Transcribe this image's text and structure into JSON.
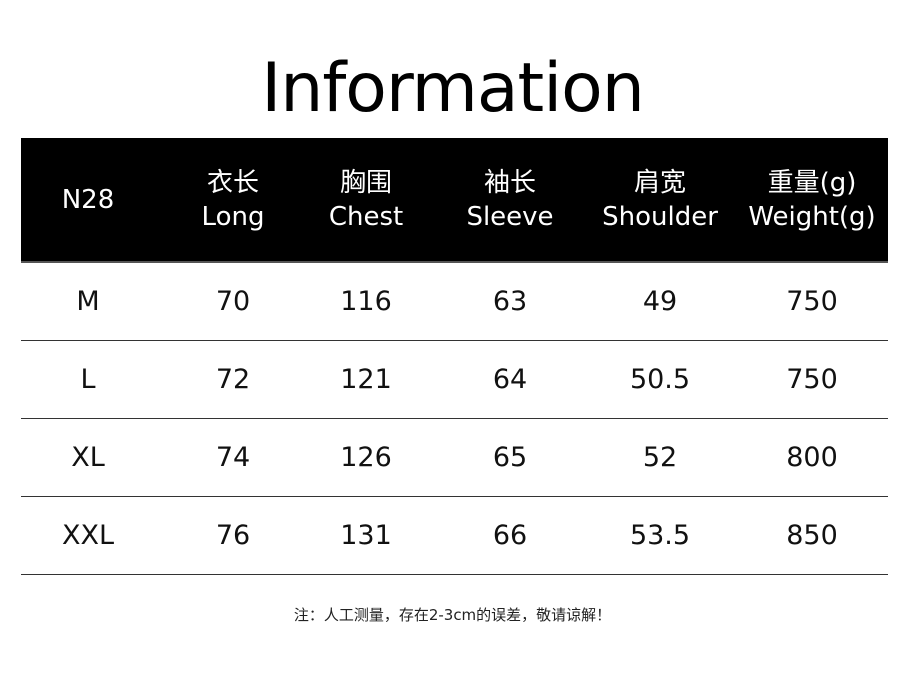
{
  "title": "Information",
  "header": [
    {
      "zh": "",
      "en": "N28"
    },
    {
      "zh": "衣长",
      "en": "Long"
    },
    {
      "zh": "胸围",
      "en": "Chest"
    },
    {
      "zh": "袖长",
      "en": "Sleeve"
    },
    {
      "zh": "肩宽",
      "en": "Shoulder"
    },
    {
      "zh": "重量(g)",
      "en": "Weight(g)"
    }
  ],
  "rows": [
    [
      "M",
      "70",
      "116",
      "63",
      "49",
      "750"
    ],
    [
      "L",
      "72",
      "121",
      "64",
      "50.5",
      "750"
    ],
    [
      "XL",
      "74",
      "126",
      "65",
      "52",
      "800"
    ],
    [
      "XXL",
      "76",
      "131",
      "66",
      "53.5",
      "850"
    ]
  ],
  "note": "注：人工测量，存在2-3cm的误差，敬请谅解！"
}
